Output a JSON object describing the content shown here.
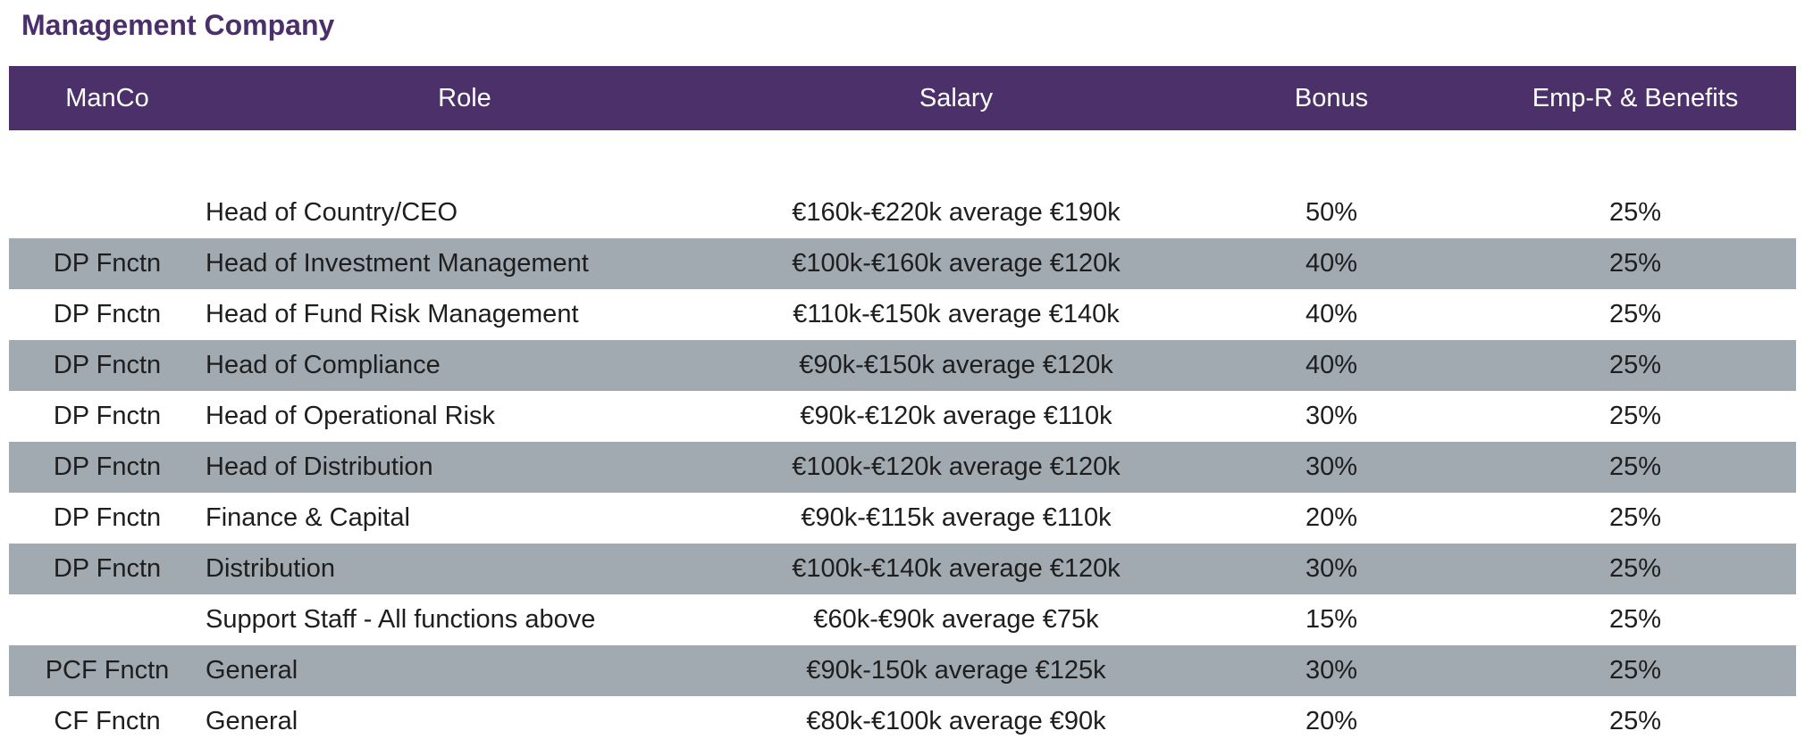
{
  "title": "Management Company",
  "columns": {
    "manco": "ManCo",
    "role": "Role",
    "salary": "Salary",
    "bonus": "Bonus",
    "emp": "Emp-R & Benefits"
  },
  "rows": [
    {
      "manco": "",
      "role": "Head of Country/CEO",
      "salary": "€160k-€220k average €190k",
      "bonus": "50%",
      "emp": "25%"
    },
    {
      "manco": "DP Fnctn",
      "role": "Head of Investment Management",
      "salary": "€100k-€160k average €120k",
      "bonus": "40%",
      "emp": "25%"
    },
    {
      "manco": "DP Fnctn",
      "role": "Head of Fund Risk Management",
      "salary": "€110k-€150k average €140k",
      "bonus": "40%",
      "emp": "25%"
    },
    {
      "manco": "DP Fnctn",
      "role": "Head of Compliance",
      "salary": "€90k-€150k average €120k",
      "bonus": "40%",
      "emp": "25%"
    },
    {
      "manco": "DP Fnctn",
      "role": "Head of Operational Risk",
      "salary": "€90k-€120k average €110k",
      "bonus": "30%",
      "emp": "25%"
    },
    {
      "manco": "DP Fnctn",
      "role": "Head of Distribution",
      "salary": "€100k-€120k average €120k",
      "bonus": "30%",
      "emp": "25%"
    },
    {
      "manco": "DP Fnctn",
      "role": "Finance & Capital",
      "salary": "€90k-€115k average €110k",
      "bonus": "20%",
      "emp": "25%"
    },
    {
      "manco": "DP Fnctn",
      "role": "Distribution",
      "salary": "€100k-€140k average €120k",
      "bonus": "30%",
      "emp": "25%"
    },
    {
      "manco": "",
      "role": "Support Staff - All functions above",
      "salary": "€60k-€90k average €75k",
      "bonus": "15%",
      "emp": "25%"
    },
    {
      "manco": "PCF Fnctn",
      "role": "General",
      "salary": "€90k-150k average €125k",
      "bonus": "30%",
      "emp": "25%"
    },
    {
      "manco": "CF Fnctn",
      "role": "General",
      "salary": "€80k-€100k average €90k",
      "bonus": "20%",
      "emp": "25%"
    }
  ],
  "colors": {
    "header_bg": "#4b3069",
    "title": "#4b2f6b",
    "shaded_row": "#a1a9b1"
  }
}
